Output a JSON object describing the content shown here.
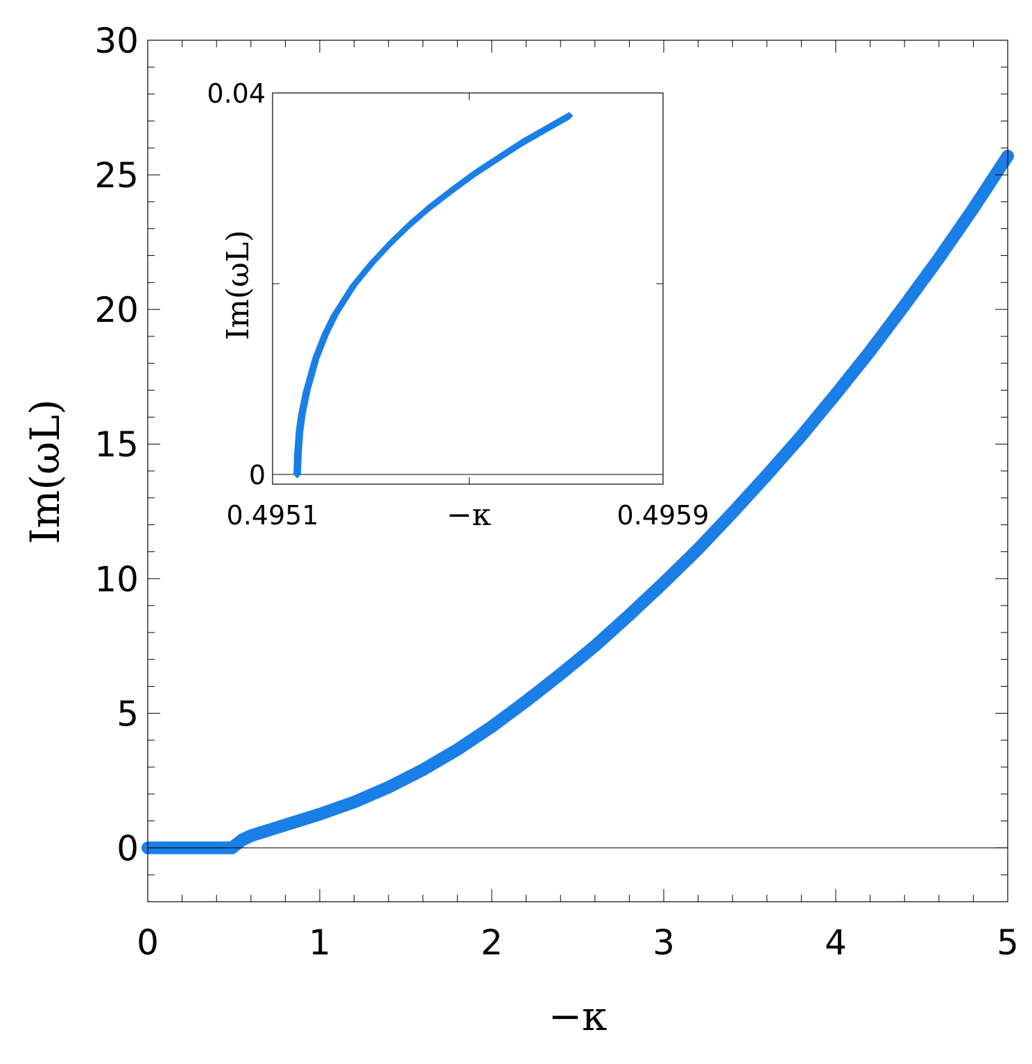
{
  "chart_data": [
    {
      "type": "scatter",
      "xlabel": "−κ",
      "ylabel": "Im(ωL)",
      "xlim": [
        0,
        5
      ],
      "ylim": [
        -2,
        30
      ],
      "xticks": [
        "0",
        "1",
        "2",
        "3",
        "4",
        "5"
      ],
      "yticks": [
        "0",
        "5",
        "10",
        "15",
        "20",
        "25",
        "30"
      ],
      "color": "#1a7fe6",
      "zero_line": true,
      "series": [
        {
          "points": [
            [
              0.0,
              0.0
            ],
            [
              0.1,
              0.0
            ],
            [
              0.2,
              0.0
            ],
            [
              0.3,
              0.0
            ],
            [
              0.4,
              0.0
            ],
            [
              0.49,
              0.0
            ],
            [
              0.5,
              0.05
            ],
            [
              0.55,
              0.3
            ],
            [
              0.6,
              0.45
            ],
            [
              0.7,
              0.65
            ],
            [
              0.8,
              0.85
            ],
            [
              0.9,
              1.05
            ],
            [
              1.0,
              1.25
            ],
            [
              1.2,
              1.7
            ],
            [
              1.4,
              2.25
            ],
            [
              1.6,
              2.9
            ],
            [
              1.8,
              3.65
            ],
            [
              2.0,
              4.5
            ],
            [
              2.2,
              5.45
            ],
            [
              2.4,
              6.45
            ],
            [
              2.6,
              7.5
            ],
            [
              2.8,
              8.65
            ],
            [
              3.0,
              9.85
            ],
            [
              3.2,
              11.1
            ],
            [
              3.4,
              12.45
            ],
            [
              3.6,
              13.85
            ],
            [
              3.8,
              15.3
            ],
            [
              4.0,
              16.85
            ],
            [
              4.2,
              18.45
            ],
            [
              4.4,
              20.15
            ],
            [
              4.6,
              21.9
            ],
            [
              4.8,
              23.75
            ],
            [
              5.0,
              25.7
            ]
          ]
        }
      ]
    },
    {
      "type": "scatter",
      "inset": true,
      "xlabel": "−κ",
      "ylabel": "Im(ωL)",
      "xlim": [
        0.4951,
        0.4959
      ],
      "ylim": [
        0,
        0.04
      ],
      "xticks": [
        "0.4951",
        "0.4959"
      ],
      "yticks": [
        "0",
        "0.04"
      ],
      "color": "#1a7fe6",
      "series": [
        {
          "points": [
            [
              0.49512,
              0.0
            ],
            [
              0.495121,
              0.0015
            ],
            [
              0.495122,
              0.0025
            ],
            [
              0.495125,
              0.0045
            ],
            [
              0.49513,
              0.0063
            ],
            [
              0.49514,
              0.0087
            ],
            [
              0.49516,
              0.0122
            ],
            [
              0.49518,
              0.0147
            ],
            [
              0.4952,
              0.0167
            ],
            [
              0.49524,
              0.0198
            ],
            [
              0.49528,
              0.0222
            ],
            [
              0.49532,
              0.0243
            ],
            [
              0.49536,
              0.0262
            ],
            [
              0.4954,
              0.0279
            ],
            [
              0.49545,
              0.0298
            ],
            [
              0.4955,
              0.0316
            ],
            [
              0.49555,
              0.0332
            ],
            [
              0.4956,
              0.0348
            ],
            [
              0.49565,
              0.0362
            ],
            [
              0.4957,
              0.0376
            ]
          ]
        }
      ]
    }
  ]
}
